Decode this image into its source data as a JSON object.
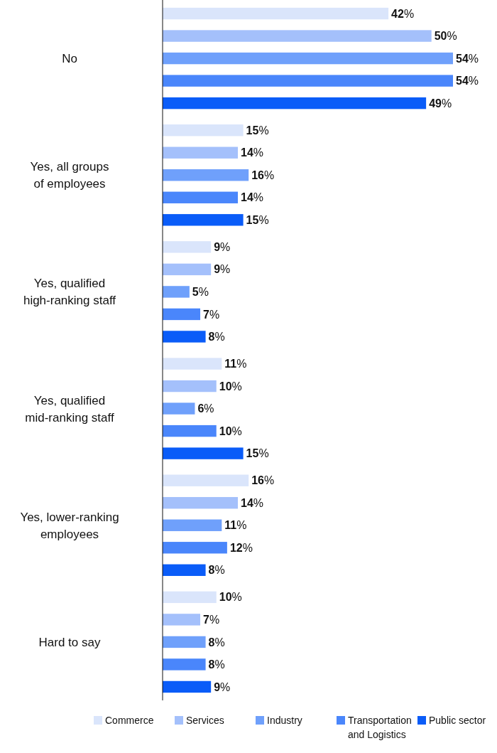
{
  "chart_data": {
    "type": "bar",
    "orientation": "horizontal",
    "relative": false,
    "categories": [
      "No",
      "Yes, all groups of employees",
      "Yes, qualified high-ranking staff",
      "Yes, qualified mid-ranking staff",
      "Yes, lower-ranking employees",
      "Hard to say"
    ],
    "xlim": [
      0,
      54
    ],
    "tick_labels": "y",
    "legend": "bottom",
    "series": [
      {
        "name": "Commerce",
        "color": "#dae5fb",
        "values": [
          42,
          15,
          9,
          11,
          16,
          10
        ],
        "value_labels": [
          "42%",
          "15%",
          "9%",
          "11%",
          "16%",
          "10%"
        ]
      },
      {
        "name": "Services",
        "color": "#a4c0fb",
        "values": [
          50,
          14,
          9,
          10,
          14,
          7
        ],
        "value_labels": [
          "50%",
          "14%",
          "9%",
          "10%",
          "14%",
          "7%"
        ]
      },
      {
        "name": "Industry",
        "color": "#6fa0fb",
        "values": [
          54,
          16,
          5,
          6,
          11,
          8
        ],
        "value_labels": [
          "54%",
          "16%",
          "5%",
          "6%",
          "11%",
          "8%"
        ]
      },
      {
        "name": "Transportation and Logistics",
        "color": "#4a86fb",
        "values": [
          54,
          14,
          7,
          10,
          12,
          8
        ],
        "value_labels": [
          "54%",
          "14%",
          "7%",
          "10%",
          "12%",
          "8%"
        ]
      },
      {
        "name": "Public sector",
        "color": "#0a5cf8",
        "values": [
          49,
          15,
          8,
          15,
          8,
          9
        ],
        "value_labels": [
          "49%",
          "15%",
          "8%",
          "15%",
          "8%",
          "9%"
        ]
      }
    ]
  }
}
